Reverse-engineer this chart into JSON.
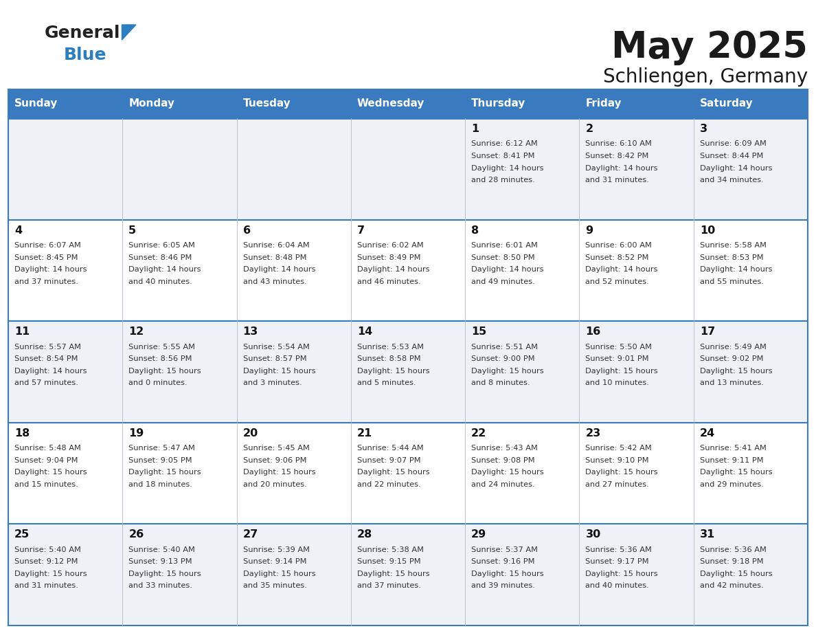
{
  "title": "May 2025",
  "subtitle": "Schliengen, Germany",
  "header_bg": "#3a7abf",
  "header_text_color": "#ffffff",
  "days_of_week": [
    "Sunday",
    "Monday",
    "Tuesday",
    "Wednesday",
    "Thursday",
    "Friday",
    "Saturday"
  ],
  "row_bg_even": "#eef2f7",
  "row_bg_odd": "#ffffff",
  "separator_color": "#3a7abf",
  "cell_text_color": "#333333",
  "day_number_color": "#111111",
  "calendar": [
    [
      {
        "day": "",
        "sunrise": "",
        "sunset": "",
        "daylight": ""
      },
      {
        "day": "",
        "sunrise": "",
        "sunset": "",
        "daylight": ""
      },
      {
        "day": "",
        "sunrise": "",
        "sunset": "",
        "daylight": ""
      },
      {
        "day": "",
        "sunrise": "",
        "sunset": "",
        "daylight": ""
      },
      {
        "day": "1",
        "sunrise": "6:12 AM",
        "sunset": "8:41 PM",
        "daylight_h": "14",
        "daylight_m": "28"
      },
      {
        "day": "2",
        "sunrise": "6:10 AM",
        "sunset": "8:42 PM",
        "daylight_h": "14",
        "daylight_m": "31"
      },
      {
        "day": "3",
        "sunrise": "6:09 AM",
        "sunset": "8:44 PM",
        "daylight_h": "14",
        "daylight_m": "34"
      }
    ],
    [
      {
        "day": "4",
        "sunrise": "6:07 AM",
        "sunset": "8:45 PM",
        "daylight_h": "14",
        "daylight_m": "37"
      },
      {
        "day": "5",
        "sunrise": "6:05 AM",
        "sunset": "8:46 PM",
        "daylight_h": "14",
        "daylight_m": "40"
      },
      {
        "day": "6",
        "sunrise": "6:04 AM",
        "sunset": "8:48 PM",
        "daylight_h": "14",
        "daylight_m": "43"
      },
      {
        "day": "7",
        "sunrise": "6:02 AM",
        "sunset": "8:49 PM",
        "daylight_h": "14",
        "daylight_m": "46"
      },
      {
        "day": "8",
        "sunrise": "6:01 AM",
        "sunset": "8:50 PM",
        "daylight_h": "14",
        "daylight_m": "49"
      },
      {
        "day": "9",
        "sunrise": "6:00 AM",
        "sunset": "8:52 PM",
        "daylight_h": "14",
        "daylight_m": "52"
      },
      {
        "day": "10",
        "sunrise": "5:58 AM",
        "sunset": "8:53 PM",
        "daylight_h": "14",
        "daylight_m": "55"
      }
    ],
    [
      {
        "day": "11",
        "sunrise": "5:57 AM",
        "sunset": "8:54 PM",
        "daylight_h": "14",
        "daylight_m": "57"
      },
      {
        "day": "12",
        "sunrise": "5:55 AM",
        "sunset": "8:56 PM",
        "daylight_h": "15",
        "daylight_m": "0"
      },
      {
        "day": "13",
        "sunrise": "5:54 AM",
        "sunset": "8:57 PM",
        "daylight_h": "15",
        "daylight_m": "3"
      },
      {
        "day": "14",
        "sunrise": "5:53 AM",
        "sunset": "8:58 PM",
        "daylight_h": "15",
        "daylight_m": "5"
      },
      {
        "day": "15",
        "sunrise": "5:51 AM",
        "sunset": "9:00 PM",
        "daylight_h": "15",
        "daylight_m": "8"
      },
      {
        "day": "16",
        "sunrise": "5:50 AM",
        "sunset": "9:01 PM",
        "daylight_h": "15",
        "daylight_m": "10"
      },
      {
        "day": "17",
        "sunrise": "5:49 AM",
        "sunset": "9:02 PM",
        "daylight_h": "15",
        "daylight_m": "13"
      }
    ],
    [
      {
        "day": "18",
        "sunrise": "5:48 AM",
        "sunset": "9:04 PM",
        "daylight_h": "15",
        "daylight_m": "15"
      },
      {
        "day": "19",
        "sunrise": "5:47 AM",
        "sunset": "9:05 PM",
        "daylight_h": "15",
        "daylight_m": "18"
      },
      {
        "day": "20",
        "sunrise": "5:45 AM",
        "sunset": "9:06 PM",
        "daylight_h": "15",
        "daylight_m": "20"
      },
      {
        "day": "21",
        "sunrise": "5:44 AM",
        "sunset": "9:07 PM",
        "daylight_h": "15",
        "daylight_m": "22"
      },
      {
        "day": "22",
        "sunrise": "5:43 AM",
        "sunset": "9:08 PM",
        "daylight_h": "15",
        "daylight_m": "24"
      },
      {
        "day": "23",
        "sunrise": "5:42 AM",
        "sunset": "9:10 PM",
        "daylight_h": "15",
        "daylight_m": "27"
      },
      {
        "day": "24",
        "sunrise": "5:41 AM",
        "sunset": "9:11 PM",
        "daylight_h": "15",
        "daylight_m": "29"
      }
    ],
    [
      {
        "day": "25",
        "sunrise": "5:40 AM",
        "sunset": "9:12 PM",
        "daylight_h": "15",
        "daylight_m": "31"
      },
      {
        "day": "26",
        "sunrise": "5:40 AM",
        "sunset": "9:13 PM",
        "daylight_h": "15",
        "daylight_m": "33"
      },
      {
        "day": "27",
        "sunrise": "5:39 AM",
        "sunset": "9:14 PM",
        "daylight_h": "15",
        "daylight_m": "35"
      },
      {
        "day": "28",
        "sunrise": "5:38 AM",
        "sunset": "9:15 PM",
        "daylight_h": "15",
        "daylight_m": "37"
      },
      {
        "day": "29",
        "sunrise": "5:37 AM",
        "sunset": "9:16 PM",
        "daylight_h": "15",
        "daylight_m": "39"
      },
      {
        "day": "30",
        "sunrise": "5:36 AM",
        "sunset": "9:17 PM",
        "daylight_h": "15",
        "daylight_m": "40"
      },
      {
        "day": "31",
        "sunrise": "5:36 AM",
        "sunset": "9:18 PM",
        "daylight_h": "15",
        "daylight_m": "42"
      }
    ]
  ]
}
